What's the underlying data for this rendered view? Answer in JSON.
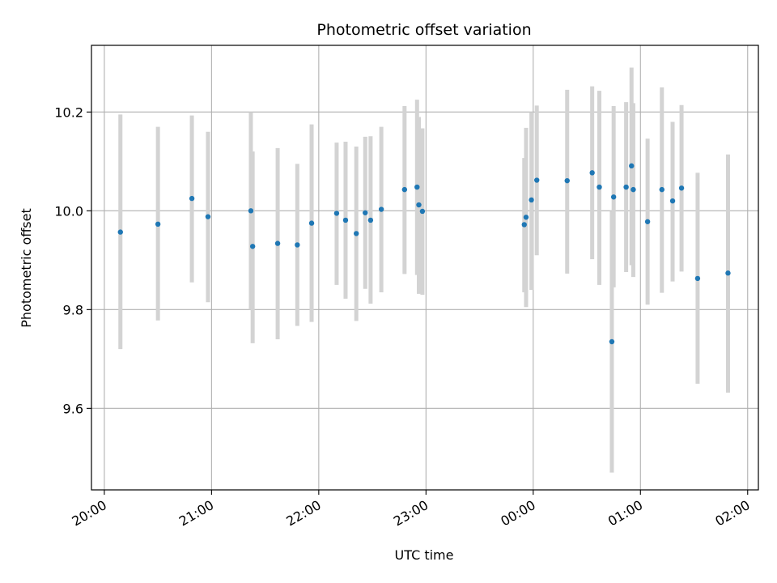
{
  "chart_data": {
    "type": "scatter",
    "title": "Photometric offset variation",
    "xlabel": "UTC time",
    "ylabel": "Photometric offset",
    "x_ticks": [
      "20:00",
      "21:00",
      "22:00",
      "23:00",
      "00:00",
      "01:00",
      "02:00"
    ],
    "x_tick_hours": [
      20,
      21,
      22,
      23,
      24,
      25,
      26
    ],
    "xlim_hours": [
      19.88,
      26.1
    ],
    "y_ticks": [
      "9.6",
      "9.8",
      "10.0",
      "10.2"
    ],
    "y_tick_values": [
      9.6,
      9.8,
      10.0,
      10.2
    ],
    "ylim": [
      9.435,
      10.335
    ],
    "grid": true,
    "marker_color": "#1f77b4",
    "errorbar_color": "#d3d3d3",
    "points": [
      {
        "x": "20:09",
        "y": 9.957,
        "low": 9.72,
        "high": 10.195
      },
      {
        "x": "20:30",
        "y": 9.973,
        "low": 9.778,
        "high": 10.17
      },
      {
        "x": "20:49",
        "y": 10.025,
        "low": 9.855,
        "high": 10.193
      },
      {
        "x": "20:58",
        "y": 9.988,
        "low": 9.815,
        "high": 10.16
      },
      {
        "x": "21:22",
        "y": 10.0,
        "low": 9.8,
        "high": 10.2
      },
      {
        "x": "21:23",
        "y": 9.928,
        "low": 9.732,
        "high": 10.12
      },
      {
        "x": "21:37",
        "y": 9.934,
        "low": 9.74,
        "high": 10.127
      },
      {
        "x": "21:48",
        "y": 9.931,
        "low": 9.767,
        "high": 10.095
      },
      {
        "x": "21:56",
        "y": 9.975,
        "low": 9.775,
        "high": 10.175
      },
      {
        "x": "22:10",
        "y": 9.995,
        "low": 9.85,
        "high": 10.138
      },
      {
        "x": "22:15",
        "y": 9.981,
        "low": 9.822,
        "high": 10.14
      },
      {
        "x": "22:21",
        "y": 9.954,
        "low": 9.777,
        "high": 10.13
      },
      {
        "x": "22:26",
        "y": 9.996,
        "low": 9.842,
        "high": 10.15
      },
      {
        "x": "22:29",
        "y": 9.981,
        "low": 9.812,
        "high": 10.151
      },
      {
        "x": "22:35",
        "y": 10.003,
        "low": 9.835,
        "high": 10.17
      },
      {
        "x": "22:48",
        "y": 10.043,
        "low": 9.872,
        "high": 10.212
      },
      {
        "x": "22:55",
        "y": 10.048,
        "low": 9.87,
        "high": 10.225
      },
      {
        "x": "22:56",
        "y": 10.012,
        "low": 9.832,
        "high": 10.19
      },
      {
        "x": "22:58",
        "y": 9.999,
        "low": 9.83,
        "high": 10.167
      },
      {
        "x": "23:55",
        "y": 9.972,
        "low": 9.835,
        "high": 10.107
      },
      {
        "x": "23:56",
        "y": 9.987,
        "low": 9.805,
        "high": 10.168
      },
      {
        "x": "23:59",
        "y": 10.022,
        "low": 9.84,
        "high": 10.2
      },
      {
        "x": "00:02",
        "y": 10.062,
        "low": 9.91,
        "high": 10.213
      },
      {
        "x": "00:19",
        "y": 10.061,
        "low": 9.873,
        "high": 10.245
      },
      {
        "x": "00:33",
        "y": 10.077,
        "low": 9.902,
        "high": 10.252
      },
      {
        "x": "00:37",
        "y": 10.048,
        "low": 9.85,
        "high": 10.243
      },
      {
        "x": "00:44",
        "y": 9.735,
        "low": 9.47,
        "high": 10.0
      },
      {
        "x": "00:45",
        "y": 10.028,
        "low": 9.845,
        "high": 10.212
      },
      {
        "x": "00:52",
        "y": 10.048,
        "low": 9.876,
        "high": 10.22
      },
      {
        "x": "00:55",
        "y": 10.091,
        "low": 9.89,
        "high": 10.29
      },
      {
        "x": "00:56",
        "y": 10.043,
        "low": 9.866,
        "high": 10.218
      },
      {
        "x": "01:04",
        "y": 9.978,
        "low": 9.81,
        "high": 10.146
      },
      {
        "x": "01:12",
        "y": 10.043,
        "low": 9.834,
        "high": 10.25
      },
      {
        "x": "01:18",
        "y": 10.02,
        "low": 9.857,
        "high": 10.18
      },
      {
        "x": "01:23",
        "y": 10.046,
        "low": 9.877,
        "high": 10.214
      },
      {
        "x": "01:32",
        "y": 9.863,
        "low": 9.65,
        "high": 10.077
      },
      {
        "x": "01:49",
        "y": 9.874,
        "low": 9.632,
        "high": 10.114
      }
    ]
  }
}
